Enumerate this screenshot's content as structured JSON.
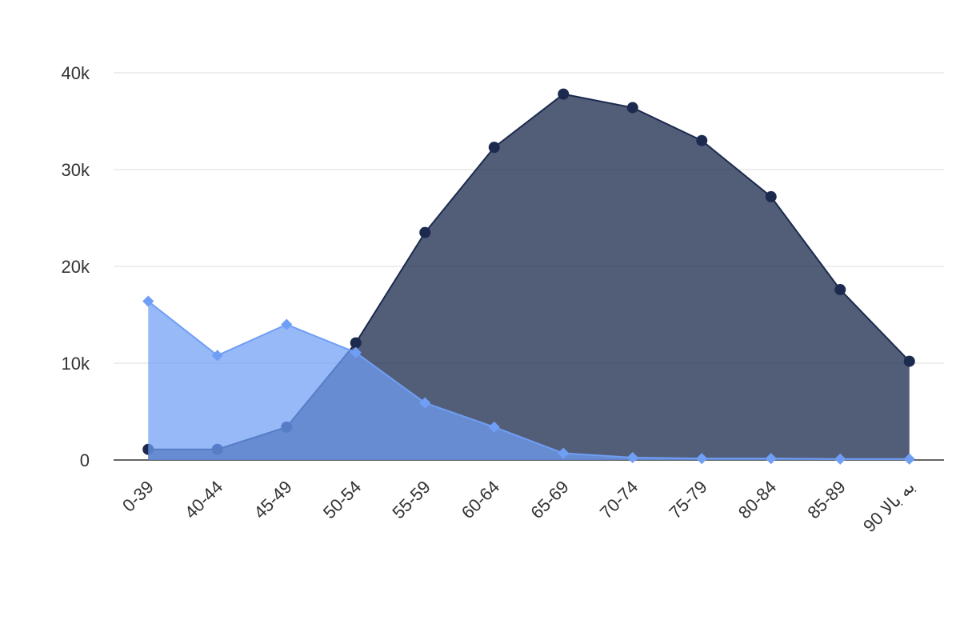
{
  "chart_data": {
    "type": "area",
    "categories": [
      "0-39",
      "40-44",
      "45-49",
      "50-54",
      "55-59",
      "60-64",
      "65-69",
      "70-74",
      "75-79",
      "80-84",
      "85-89",
      "90 به بالا"
    ],
    "series": [
      {
        "color": "#1b2a4e",
        "marker": "circle",
        "values": [
          1100,
          1100,
          3400,
          12100,
          23500,
          32300,
          37800,
          36400,
          33000,
          27200,
          17600,
          10200
        ]
      },
      {
        "color": "#6f9ef5",
        "marker": "diamond",
        "values": [
          16400,
          10800,
          14000,
          11100,
          5900,
          3400,
          700,
          250,
          150,
          150,
          100,
          100
        ]
      }
    ],
    "ylim": [
      0,
      40000
    ],
    "yticks": [
      0,
      {
        "value": 10000,
        "label": "10k"
      },
      {
        "value": 20000,
        "label": "20k"
      },
      {
        "value": 30000,
        "label": "30k"
      },
      {
        "value": 40000,
        "label": "40k"
      }
    ],
    "grid": true
  }
}
